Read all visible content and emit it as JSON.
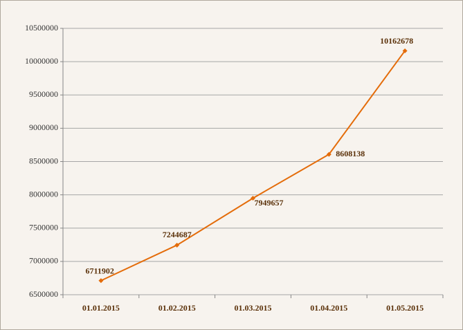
{
  "chart_data": {
    "type": "line",
    "categories": [
      "01.01.2015",
      "01.02.2015",
      "01.03.2015",
      "01.04.2015",
      "01.05.2015"
    ],
    "values": [
      6711902,
      7244687,
      7949657,
      8608138,
      10162678
    ],
    "color": "#e46c0a",
    "ylim": [
      6500000,
      10500000
    ],
    "yticks": [
      6500000,
      7000000,
      7500000,
      8000000,
      8500000,
      9000000,
      9500000,
      10000000,
      10500000
    ],
    "grid": true
  }
}
